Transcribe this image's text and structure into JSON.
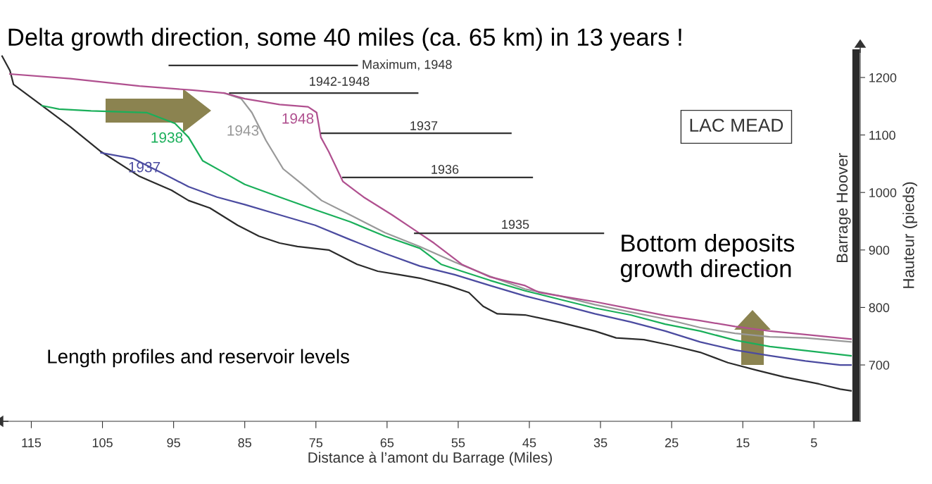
{
  "chart_data": {
    "type": "line",
    "title": "Delta growth direction, some 40 miles (ca. 65 km) in 13 years !",
    "xlabel": "Distance à l’amont du Barrage (Miles)",
    "ylabel": "Hauteur (pieds)",
    "xlim": [
      119.4,
      -1.5
    ],
    "bands": [
      {
        "axis": "x",
        "from": -0.4,
        "to": -1.4,
        "label": "Barrage Hoover",
        "color": "#2b2b2b"
      }
    ],
    "xticks": [
      115,
      105,
      95,
      85,
      75,
      65,
      55,
      45,
      35,
      25,
      15,
      5
    ],
    "ylim": [
      602,
      1249
    ],
    "yticks": [
      700,
      800,
      900,
      1000,
      1100,
      1200
    ],
    "grid": false,
    "legend": false,
    "marker": "none",
    "line_style": "solid",
    "series": [
      {
        "color": "#2b2b2b",
        "x": [
          119.1,
          118.0,
          117.5,
          113.5,
          109.5,
          105.2,
          99.8,
          95.3,
          92.9,
          89.9,
          86.0,
          83.0,
          80.1,
          77.6,
          73.2,
          69.2,
          66.3,
          63.3,
          60.4,
          56.4,
          53.5,
          51.5,
          49.5,
          45.6,
          40.7,
          35.8,
          32.8,
          28.9,
          25.0,
          21.0,
          17.1,
          13.1,
          9.2,
          4.3,
          1.3,
          -0.2
        ],
        "values": [
          1237,
          1212,
          1188,
          1151,
          1114,
          1071,
          1028,
          1004,
          986,
          973,
          943,
          924,
          912,
          906,
          900,
          875,
          863,
          857,
          851,
          838,
          826,
          802,
          789,
          787,
          774,
          759,
          747,
          744,
          734,
          722,
          704,
          691,
          679,
          667,
          658,
          655
        ]
      },
      {
        "name": "1937",
        "color": "#4b4ba0",
        "x": [
          105.2,
          100.7,
          96.8,
          92.9,
          88.9,
          85.0,
          80.1,
          75.1,
          70.2,
          65.3,
          60.4,
          55.5,
          50.5,
          45.6,
          40.7,
          35.8,
          30.8,
          25.9,
          21.0,
          16.1,
          11.2,
          6.2,
          1.3,
          -0.2
        ],
        "values": [
          1069,
          1059,
          1035,
          1010,
          992,
          979,
          961,
          943,
          918,
          894,
          872,
          857,
          838,
          820,
          805,
          789,
          775,
          759,
          740,
          726,
          716,
          707,
          700,
          700
        ]
      },
      {
        "name": "1938",
        "color": "#1aaf5a",
        "x": [
          113.5,
          111.1,
          106.6,
          98.8,
          94.8,
          92.9,
          90.9,
          88.0,
          85.0,
          80.1,
          75.1,
          70.2,
          65.3,
          60.4,
          57.4,
          54.5,
          50.5,
          45.6,
          40.7,
          35.8,
          30.8,
          25.9,
          21.0,
          16.1,
          11.2,
          6.2,
          -0.2
        ],
        "values": [
          1151,
          1145,
          1142,
          1139,
          1120,
          1096,
          1055,
          1035,
          1014,
          992,
          970,
          949,
          924,
          903,
          875,
          863,
          847,
          829,
          814,
          799,
          787,
          771,
          759,
          743,
          732,
          725,
          716
        ]
      },
      {
        "name": "1943",
        "color": "#999999",
        "x": [
          87.9,
          85.5,
          84.0,
          82.0,
          79.6,
          77.1,
          74.2,
          70.2,
          65.3,
          60.4,
          55.5,
          50.5,
          45.6,
          40.7,
          35.8,
          30.8,
          25.9,
          21.0,
          16.1,
          11.2,
          6.2,
          -0.2
        ],
        "values": [
          1173,
          1163,
          1139,
          1090,
          1041,
          1016,
          986,
          961,
          930,
          906,
          879,
          854,
          832,
          820,
          805,
          792,
          780,
          765,
          755,
          749,
          747,
          740
        ]
      },
      {
        "name": "1948",
        "color": "#b0508f",
        "x": [
          118.0,
          109.5,
          99.8,
          92.4,
          87.9,
          85.0,
          80.1,
          76.1,
          74.9,
          74.3,
          73.2,
          71.2,
          68.3,
          64.3,
          61.4,
          58.4,
          54.5,
          50.5,
          45.6,
          43.6,
          40.7,
          35.8,
          30.8,
          25.9,
          21.0,
          16.1,
          11.2,
          6.2,
          -0.2
        ],
        "values": [
          1206,
          1198,
          1185,
          1178,
          1173,
          1163,
          1153,
          1149,
          1139,
          1096,
          1071,
          1019,
          992,
          961,
          937,
          912,
          875,
          853,
          838,
          826,
          820,
          810,
          798,
          786,
          777,
          767,
          759,
          753,
          745
        ]
      },
      {
        "color": "#333333",
        "x": [
          95.6,
          69.2
        ],
        "values": [
          1221,
          1221
        ]
      },
      {
        "color": "#333333",
        "x": [
          87.1,
          60.7
        ],
        "values": [
          1173,
          1173
        ]
      },
      {
        "color": "#333333",
        "x": [
          74.2,
          47.6
        ],
        "values": [
          1103,
          1103
        ]
      },
      {
        "color": "#333333",
        "x": [
          71.2,
          44.6
        ],
        "values": [
          1026,
          1026
        ]
      },
      {
        "color": "#333333",
        "x": [
          61.1,
          34.6
        ],
        "values": [
          929,
          929
        ]
      }
    ],
    "annotations": [
      "Maximum, 1948",
      "1942-1948",
      "1937",
      "1936",
      "1935",
      "LAC MEAD",
      "Bottom deposits\ngrowth direction",
      "Length profiles and reservoir levels"
    ]
  }
}
